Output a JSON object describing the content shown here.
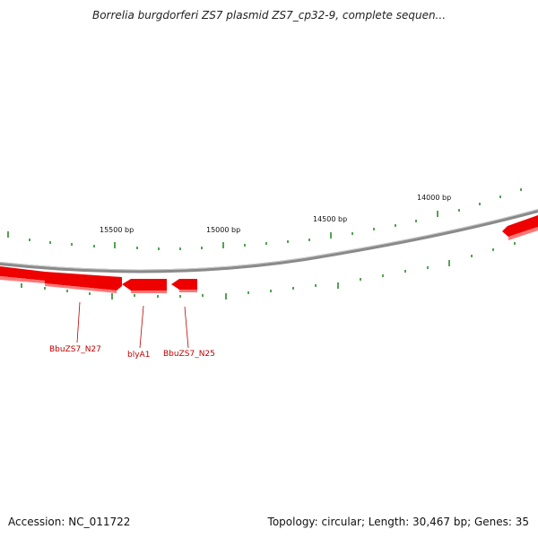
{
  "title": "Borrelia burgdorferi ZS7 plasmid ZS7_cp32-9, complete sequen...",
  "footer": {
    "accession": "Accession: NC_011722",
    "summary": "Topology: circular; Length: 30,467 bp; Genes: 35"
  },
  "scale_labels": [
    "15500 bp",
    "15000 bp",
    "14500 bp",
    "14000 bp"
  ],
  "gene_labels": [
    "BbuZS7_N27",
    "blyA1",
    "BbuZS7_N25"
  ],
  "colors": {
    "backbone": "#8a8a8a",
    "gene_fill": "#ee0000",
    "gene_highlight": "#ff7777",
    "tick": "#2a8a2a",
    "gene_label": "#c00000"
  }
}
